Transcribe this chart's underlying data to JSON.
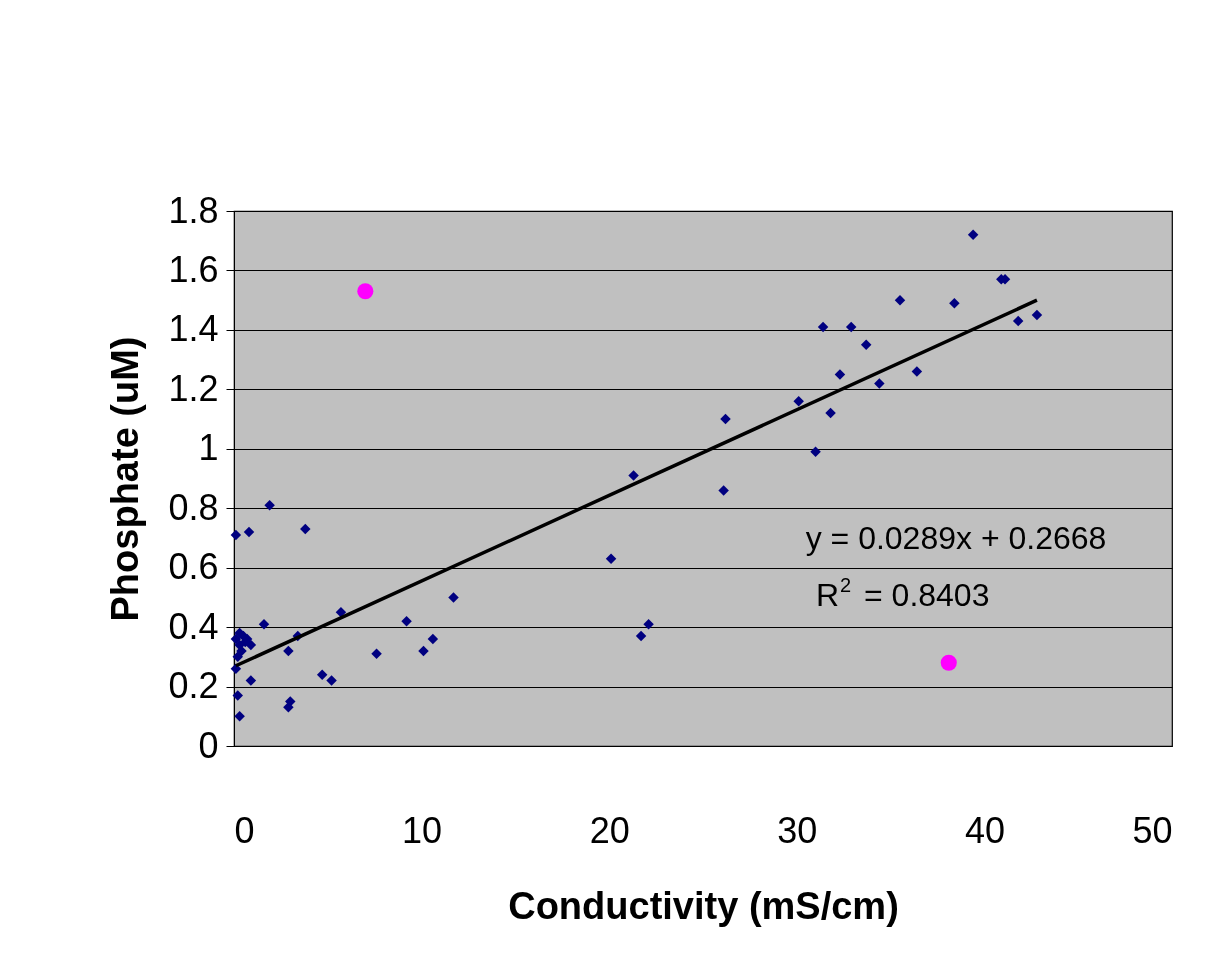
{
  "chart_data": {
    "type": "scatter",
    "xlabel": "Conductivity (mS/cm)",
    "ylabel": "Phosphate (uM)",
    "xlim": [
      0,
      50
    ],
    "xticks": [
      0,
      10,
      20,
      30,
      40,
      50
    ],
    "ylim": [
      0,
      1.8
    ],
    "yticks": [
      0,
      0.2,
      0.4,
      0.6,
      0.8,
      1,
      1.2,
      1.4,
      1.6,
      1.8
    ],
    "grid": "y",
    "legend": false,
    "annotations": [
      "y = 0.0289x + 0.2668",
      "R$^{2}$ = 0.8403"
    ],
    "series": [
      {
        "marker": "diamond",
        "color": "#000080",
        "x": [
          0.1,
          0.8,
          1.9,
          3.8,
          1.6,
          3.4,
          5.7,
          0.1,
          0.3,
          0.5,
          0.7,
          0.3,
          0.9,
          0.4,
          0.6,
          0.2,
          0.1,
          0.9,
          0.2,
          0.3,
          2.9,
          3.0,
          2.9,
          4.7,
          5.2,
          7.6,
          9.2,
          10.1,
          10.6,
          11.7,
          22.1,
          21.7,
          20.1,
          21.3,
          26.1,
          26.2,
          30.1,
          31.0,
          31.8,
          34.4,
          32.3,
          31.4,
          32.9,
          33.7,
          35.5,
          36.4,
          38.4,
          39.4,
          40.9,
          41.1,
          41.8,
          42.8
        ],
        "values": [
          0.71,
          0.72,
          0.81,
          0.73,
          0.41,
          0.37,
          0.45,
          0.36,
          0.38,
          0.37,
          0.36,
          0.34,
          0.34,
          0.32,
          0.35,
          0.3,
          0.26,
          0.22,
          0.17,
          0.1,
          0.32,
          0.15,
          0.13,
          0.24,
          0.22,
          0.31,
          0.42,
          0.32,
          0.36,
          0.5,
          0.41,
          0.37,
          0.63,
          0.91,
          0.86,
          1.1,
          1.16,
          0.99,
          1.12,
          1.22,
          1.25,
          1.41,
          1.41,
          1.35,
          1.5,
          1.26,
          1.49,
          1.72,
          1.57,
          1.57,
          1.43,
          1.45
        ]
      },
      {
        "marker": "circle",
        "color": "#ff00ff",
        "x": [
          7.0,
          38.1
        ],
        "values": [
          1.53,
          0.28
        ]
      },
      {
        "type": "line",
        "marker": "none",
        "color": "#000000",
        "x": [
          0.1,
          42.8
        ],
        "values": [
          0.27,
          1.5
        ]
      }
    ]
  }
}
